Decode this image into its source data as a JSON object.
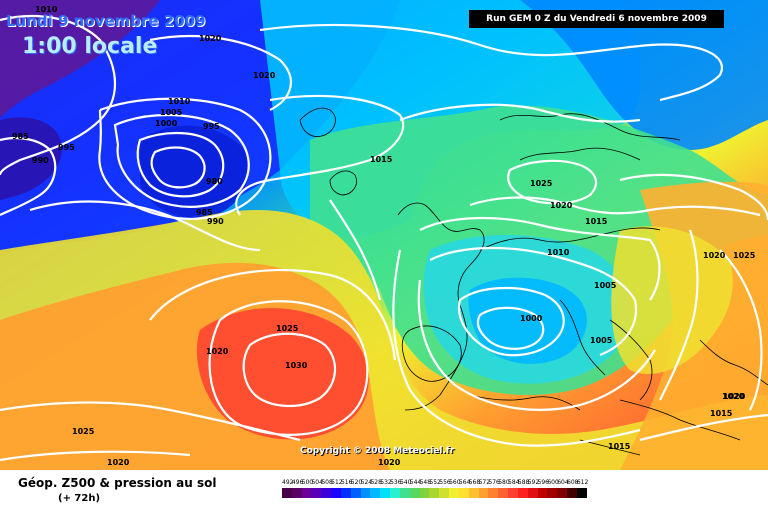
{
  "header": {
    "valid_date": "Lundi 9 novembre 2009",
    "local_time": "1:00 locale",
    "run_info": "Run GEM 0 Z du Vendredi 6 novembre 2009"
  },
  "credit": "Copyright © 2008 Meteociel.fr",
  "legend": {
    "title": "Géop. Z500 & pression au sol",
    "subtitle": "(+ 72h)",
    "values": [
      "492",
      "496",
      "500",
      "504",
      "508",
      "512",
      "516",
      "520",
      "524",
      "528",
      "532",
      "536",
      "540",
      "544",
      "548",
      "552",
      "556",
      "560",
      "564",
      "568",
      "572",
      "576",
      "580",
      "584",
      "588",
      "592",
      "596",
      "600",
      "604",
      "608",
      "612"
    ],
    "colors": [
      "#4a0048",
      "#5b0066",
      "#6d0099",
      "#5a00b8",
      "#3d00d6",
      "#1e00ff",
      "#0030ff",
      "#0060ff",
      "#0090ff",
      "#00b8ff",
      "#00e0ff",
      "#28f0d0",
      "#40e090",
      "#58d860",
      "#80d040",
      "#a8d830",
      "#d0e030",
      "#f0f030",
      "#ffe030",
      "#ffc030",
      "#ffa030",
      "#ff8030",
      "#ff6030",
      "#ff4030",
      "#ff2020",
      "#e01010",
      "#c00000",
      "#a00000",
      "#800000",
      "#400000",
      "#000000"
    ]
  },
  "isobar_labels": [
    "1010",
    "1020",
    "1020",
    "1010",
    "1005",
    "1000",
    "995",
    "985",
    "990",
    "995",
    "980",
    "985",
    "990",
    "1015",
    "1025",
    "1020",
    "1015",
    "1010",
    "1005",
    "1000",
    "1005",
    "1020",
    "1025",
    "1025",
    "1020",
    "1030",
    "1020",
    "1020",
    "1025",
    "1020",
    "1015",
    "1015",
    "1020"
  ]
}
